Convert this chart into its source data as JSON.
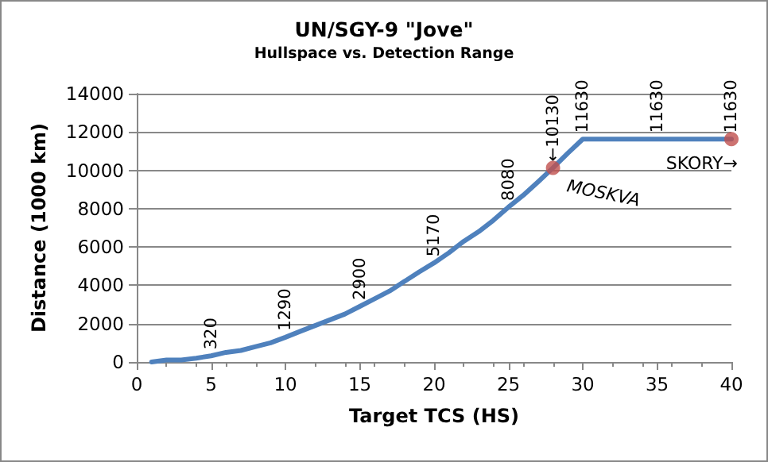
{
  "chart_data": {
    "type": "line",
    "title": "UN/SGY-9 \"Jove\"",
    "subtitle": "Hullspace vs. Detection Range",
    "xlabel": "Target TCS (HS)",
    "ylabel": "Distance (1000 km)",
    "xlim": [
      0,
      40
    ],
    "xticks": [
      0,
      5,
      10,
      15,
      20,
      25,
      30,
      35,
      40
    ],
    "ylim": [
      0,
      14000
    ],
    "yticks": [
      0,
      2000,
      4000,
      6000,
      8000,
      10000,
      12000,
      14000
    ],
    "grid": "y",
    "marker": "none",
    "series": [
      {
        "color": "#4f81bd",
        "x": [
          1,
          2,
          3,
          4,
          5,
          6,
          7,
          8,
          9,
          10,
          11,
          12,
          13,
          14,
          15,
          16,
          17,
          18,
          19,
          20,
          21,
          22,
          23,
          24,
          25,
          26,
          27,
          28,
          29,
          30,
          35,
          40
        ],
        "values": [
          0,
          100,
          100,
          200,
          320,
          500,
          600,
          800,
          1000,
          1290,
          1600,
          1900,
          2200,
          2500,
          2900,
          3300,
          3700,
          4200,
          4700,
          5170,
          5700,
          6300,
          6800,
          7400,
          8080,
          8700,
          9400,
          10130,
          10900,
          11630,
          11630,
          11630
        ],
        "value_labels": [
          null,
          null,
          null,
          null,
          "320",
          null,
          null,
          null,
          null,
          "1290",
          null,
          null,
          null,
          null,
          "2900",
          null,
          null,
          null,
          null,
          "5170",
          null,
          null,
          null,
          null,
          "8080",
          null,
          null,
          "←10130",
          null,
          "11630",
          "11630",
          "11630"
        ]
      },
      {
        "type": "scatter",
        "marker": "circle",
        "color": "#c0504d",
        "x": [
          28,
          40
        ],
        "values": [
          10130,
          11630
        ]
      }
    ],
    "annotations": [
      {
        "text": "MOSKVA",
        "x": 28,
        "y": 10130
      },
      {
        "text": "SKORY→",
        "x": 40,
        "y": 11630
      }
    ]
  }
}
